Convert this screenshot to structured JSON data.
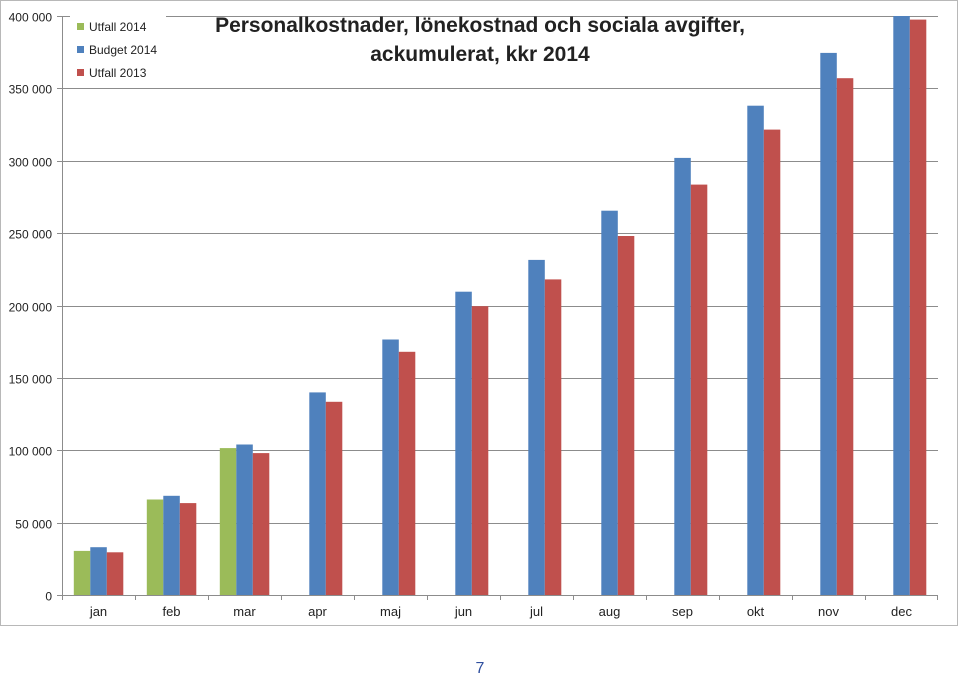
{
  "page": {
    "number": "7"
  },
  "chart_data": {
    "type": "bar",
    "title": "Personalkostnader, lönekostnad och sociala avgifter, ackumulerat, kkr 2014",
    "title_lines": [
      "Personalkostnader, lönekostnad och sociala avgifter,",
      "ackumulerat, kkr 2014"
    ],
    "categories": [
      "jan",
      "feb",
      "mar",
      "apr",
      "maj",
      "jun",
      "jul",
      "aug",
      "sep",
      "okt",
      "nov",
      "dec"
    ],
    "series": [
      {
        "name": "Utfall 2014",
        "color": "#9bbb59",
        "values": [
          30500,
          66000,
          101500,
          null,
          null,
          null,
          null,
          null,
          null,
          null,
          null,
          null
        ]
      },
      {
        "name": "Budget 2014",
        "color": "#4f81bd",
        "values": [
          33000,
          68500,
          104000,
          140000,
          176500,
          209500,
          231500,
          265500,
          302000,
          338000,
          374500,
          400000
        ]
      },
      {
        "name": "Utfall 2013",
        "color": "#c0504d",
        "values": [
          29500,
          63500,
          98000,
          133500,
          168000,
          199500,
          218000,
          248000,
          283500,
          321500,
          357000,
          397500
        ]
      }
    ],
    "ylim": [
      0,
      400000
    ],
    "yticks": [
      0,
      50000,
      100000,
      150000,
      200000,
      250000,
      300000,
      350000,
      400000
    ],
    "ytick_labels": [
      "0",
      "50 000",
      "100 000",
      "150 000",
      "200 000",
      "250 000",
      "300 000",
      "350 000",
      "400 000"
    ],
    "xlabel": "",
    "ylabel": "",
    "grid": true,
    "legend_position": "top-left"
  }
}
